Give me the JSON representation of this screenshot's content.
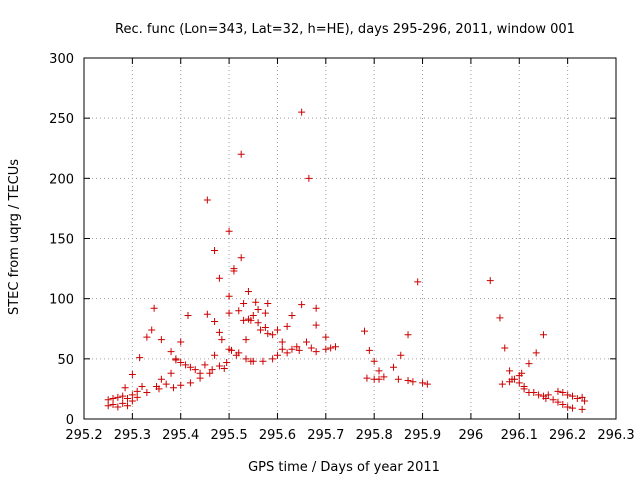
{
  "chart_data": {
    "type": "scatter",
    "title": "Rec. func (Lon=343, Lat=32, h=HE), days 295-296, 2011, window 001",
    "xlabel": "GPS time / Days of year 2011",
    "ylabel": "STEC from uqrg / TECUs",
    "xlim": [
      295.2,
      296.3
    ],
    "ylim": [
      0,
      300
    ],
    "x_ticks": [
      "295.2",
      "295.3",
      "295.4",
      "295.5",
      "295.6",
      "295.7",
      "295.8",
      "295.9",
      "296",
      "296.1",
      "296.2",
      "296.3"
    ],
    "y_ticks": [
      "0",
      "50",
      "100",
      "150",
      "200",
      "250",
      "300"
    ],
    "grid": true,
    "legend": "none",
    "marker_color": "#cc0000",
    "marker": "plus",
    "points": [
      [
        295.25,
        16
      ],
      [
        295.25,
        11
      ],
      [
        295.26,
        17
      ],
      [
        295.26,
        12
      ],
      [
        295.27,
        18
      ],
      [
        295.27,
        10
      ],
      [
        295.28,
        19
      ],
      [
        295.28,
        13
      ],
      [
        295.285,
        26
      ],
      [
        295.29,
        11
      ],
      [
        295.29,
        17
      ],
      [
        295.3,
        37
      ],
      [
        295.3,
        20
      ],
      [
        295.3,
        15
      ],
      [
        295.31,
        23
      ],
      [
        295.31,
        18
      ],
      [
        295.315,
        51
      ],
      [
        295.32,
        27
      ],
      [
        295.33,
        68
      ],
      [
        295.33,
        22
      ],
      [
        295.34,
        74
      ],
      [
        295.345,
        92
      ],
      [
        295.35,
        27
      ],
      [
        295.355,
        25
      ],
      [
        295.36,
        66
      ],
      [
        295.36,
        33
      ],
      [
        295.37,
        29
      ],
      [
        295.38,
        56
      ],
      [
        295.38,
        38
      ],
      [
        295.385,
        26
      ],
      [
        295.39,
        50
      ],
      [
        295.39,
        49
      ],
      [
        295.4,
        47
      ],
      [
        295.4,
        64
      ],
      [
        295.4,
        28
      ],
      [
        295.41,
        45
      ],
      [
        295.415,
        86
      ],
      [
        295.42,
        30
      ],
      [
        295.42,
        43
      ],
      [
        295.43,
        41
      ],
      [
        295.44,
        34
      ],
      [
        295.44,
        38
      ],
      [
        295.45,
        45
      ],
      [
        295.455,
        182
      ],
      [
        295.455,
        87
      ],
      [
        295.46,
        38
      ],
      [
        295.465,
        41
      ],
      [
        295.47,
        140
      ],
      [
        295.47,
        81
      ],
      [
        295.47,
        53
      ],
      [
        295.48,
        117
      ],
      [
        295.48,
        72
      ],
      [
        295.48,
        44
      ],
      [
        295.485,
        66
      ],
      [
        295.49,
        42
      ],
      [
        295.495,
        47
      ],
      [
        295.5,
        156
      ],
      [
        295.5,
        102
      ],
      [
        295.5,
        88
      ],
      [
        295.5,
        58
      ],
      [
        295.505,
        57
      ],
      [
        295.51,
        123
      ],
      [
        295.51,
        125
      ],
      [
        295.515,
        53
      ],
      [
        295.52,
        90
      ],
      [
        295.52,
        55
      ],
      [
        295.525,
        220
      ],
      [
        295.525,
        134
      ],
      [
        295.53,
        96
      ],
      [
        295.53,
        82
      ],
      [
        295.535,
        66
      ],
      [
        295.535,
        50
      ],
      [
        295.54,
        106
      ],
      [
        295.54,
        83
      ],
      [
        295.545,
        82
      ],
      [
        295.545,
        48
      ],
      [
        295.55,
        86
      ],
      [
        295.55,
        48
      ],
      [
        295.555,
        97
      ],
      [
        295.56,
        91
      ],
      [
        295.56,
        80
      ],
      [
        295.565,
        74
      ],
      [
        295.57,
        48
      ],
      [
        295.575,
        88
      ],
      [
        295.575,
        76
      ],
      [
        295.58,
        96
      ],
      [
        295.58,
        71
      ],
      [
        295.59,
        50
      ],
      [
        295.59,
        70
      ],
      [
        295.6,
        74
      ],
      [
        295.6,
        53
      ],
      [
        295.61,
        64
      ],
      [
        295.61,
        58
      ],
      [
        295.62,
        77
      ],
      [
        295.62,
        55
      ],
      [
        295.63,
        86
      ],
      [
        295.63,
        58
      ],
      [
        295.64,
        60
      ],
      [
        295.645,
        57
      ],
      [
        295.65,
        255
      ],
      [
        295.65,
        95
      ],
      [
        295.66,
        64
      ],
      [
        295.665,
        200
      ],
      [
        295.67,
        59
      ],
      [
        295.68,
        92
      ],
      [
        295.68,
        78
      ],
      [
        295.68,
        56
      ],
      [
        295.7,
        68
      ],
      [
        295.7,
        58
      ],
      [
        295.71,
        59
      ],
      [
        295.72,
        60
      ],
      [
        295.78,
        73
      ],
      [
        295.785,
        34
      ],
      [
        295.79,
        57
      ],
      [
        295.8,
        48
      ],
      [
        295.8,
        33
      ],
      [
        295.81,
        40
      ],
      [
        295.81,
        33
      ],
      [
        295.82,
        35
      ],
      [
        295.84,
        43
      ],
      [
        295.85,
        33
      ],
      [
        295.855,
        53
      ],
      [
        295.87,
        70
      ],
      [
        295.87,
        32
      ],
      [
        295.88,
        31
      ],
      [
        295.89,
        114
      ],
      [
        295.9,
        30
      ],
      [
        295.91,
        29
      ],
      [
        296.04,
        115
      ],
      [
        296.06,
        84
      ],
      [
        296.065,
        29
      ],
      [
        296.07,
        59
      ],
      [
        296.08,
        31
      ],
      [
        296.08,
        40
      ],
      [
        296.085,
        33
      ],
      [
        296.09,
        33
      ],
      [
        296.1,
        36
      ],
      [
        296.1,
        30
      ],
      [
        296.105,
        38
      ],
      [
        296.11,
        27
      ],
      [
        296.11,
        25
      ],
      [
        296.12,
        46
      ],
      [
        296.12,
        22
      ],
      [
        296.13,
        22
      ],
      [
        296.135,
        55
      ],
      [
        296.14,
        20
      ],
      [
        296.15,
        70
      ],
      [
        296.15,
        19
      ],
      [
        296.155,
        17
      ],
      [
        296.16,
        20
      ],
      [
        296.17,
        16
      ],
      [
        296.18,
        23
      ],
      [
        296.18,
        14
      ],
      [
        296.19,
        22
      ],
      [
        296.19,
        12
      ],
      [
        296.2,
        20
      ],
      [
        296.2,
        10
      ],
      [
        296.21,
        19
      ],
      [
        296.21,
        9
      ],
      [
        296.22,
        17
      ],
      [
        296.23,
        18
      ],
      [
        296.23,
        8
      ],
      [
        296.235,
        15
      ]
    ]
  }
}
